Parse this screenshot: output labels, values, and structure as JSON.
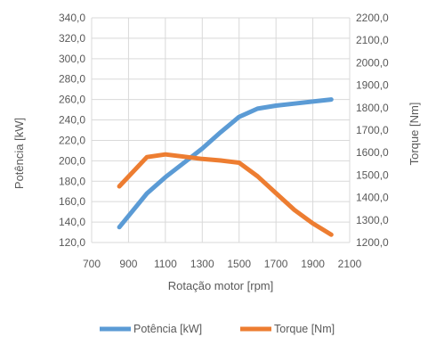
{
  "chart_data": {
    "type": "line",
    "title": "",
    "xlabel": "Rotação motor [rpm]",
    "ylabel_left": "Potência [kW]",
    "ylabel_right": "Torque [Nm]",
    "xlim": [
      700,
      2100
    ],
    "x_ticks": [
      "700",
      "900",
      "1100",
      "1300",
      "1500",
      "1700",
      "1900",
      "2100"
    ],
    "ylim_left": [
      120,
      340
    ],
    "y_left_ticks": [
      "120,0",
      "140,0",
      "160,0",
      "180,0",
      "200,0",
      "220,0",
      "240,0",
      "260,0",
      "280,0",
      "300,0",
      "320,0",
      "340,0"
    ],
    "ylim_right": [
      1200,
      2200
    ],
    "y_right_ticks": [
      "1200,0",
      "1300,0",
      "1400,0",
      "1500,0",
      "1600,0",
      "1700,0",
      "1800,0",
      "1900,0",
      "2000,0",
      "2100,0",
      "2200,0"
    ],
    "grid": true,
    "legend_position": "bottom",
    "series": [
      {
        "name": "Potência [kW]",
        "axis": "left",
        "color": "#5b9bd5",
        "x": [
          850,
          1000,
          1100,
          1200,
          1300,
          1400,
          1500,
          1600,
          1700,
          1800,
          1900,
          2000
        ],
        "y": [
          135,
          168,
          184,
          198,
          212,
          228,
          243,
          251,
          254,
          256,
          258,
          260
        ]
      },
      {
        "name": "Torque [Nm]",
        "axis": "right",
        "color": "#ed7d31",
        "x": [
          850,
          1000,
          1100,
          1200,
          1300,
          1400,
          1500,
          1600,
          1700,
          1800,
          1900,
          2000
        ],
        "y": [
          1450,
          1580,
          1592,
          1582,
          1572,
          1565,
          1555,
          1495,
          1420,
          1345,
          1285,
          1235
        ]
      }
    ]
  }
}
